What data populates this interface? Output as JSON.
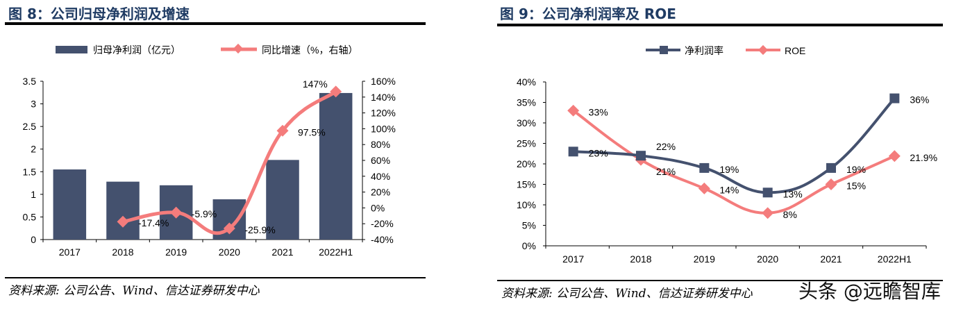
{
  "left": {
    "title": "图 8：公司归母净利润及增速",
    "source": "资料来源: 公司公告、Wind、信达证券研发中心"
  },
  "right": {
    "title": "图 9：公司净利润率及 ROE",
    "source": "资料来源: 公司公告、Wind、信达证券研发中心"
  },
  "watermark": "头条 @远瞻智库",
  "chart_data": [
    {
      "type": "bar+line",
      "categories": [
        "2017",
        "2018",
        "2019",
        "2020",
        "2021",
        "2022H1"
      ],
      "series": [
        {
          "name": "归母净利润（亿元）",
          "type": "bar",
          "axis": "left",
          "color": "#44516e",
          "values": [
            1.55,
            1.28,
            1.2,
            0.89,
            1.76,
            3.24
          ]
        },
        {
          "name": "同比增速（%，右轴）",
          "type": "line",
          "axis": "right",
          "color": "#f47c7c",
          "values": [
            null,
            -17.4,
            -5.9,
            -25.9,
            97.5,
            147
          ],
          "labels": [
            "",
            "-17.4%",
            "-5.9%",
            "-25.9%",
            "97.5%",
            "147%"
          ]
        }
      ],
      "left_axis": {
        "range": [
          0,
          3.5
        ],
        "ticks": [
          "0",
          "0.5",
          "1",
          "1.5",
          "2",
          "2.5",
          "3",
          "3.5"
        ]
      },
      "right_axis": {
        "range": [
          -40,
          160
        ],
        "ticks": [
          "-40%",
          "-20%",
          "0%",
          "20%",
          "40%",
          "60%",
          "80%",
          "100%",
          "120%",
          "140%",
          "160%"
        ]
      },
      "legend": "top",
      "grid": false
    },
    {
      "type": "line",
      "categories": [
        "2017",
        "2018",
        "2019",
        "2020",
        "2021",
        "2022H1"
      ],
      "series": [
        {
          "name": "净利润率",
          "color": "#44516e",
          "marker": "square",
          "values": [
            23,
            22,
            19,
            13,
            19,
            36
          ],
          "labels": [
            "23%",
            "22%",
            "19%",
            "13%",
            "19%",
            "36%"
          ]
        },
        {
          "name": "ROE",
          "color": "#f47c7c",
          "marker": "diamond",
          "values": [
            33,
            21,
            14,
            8,
            15,
            21.9
          ],
          "labels": [
            "33%",
            "21%",
            "14%",
            "8%",
            "15%",
            "21.9%"
          ]
        }
      ],
      "y_axis": {
        "range": [
          0,
          40
        ],
        "ticks": [
          "0%",
          "5%",
          "10%",
          "15%",
          "20%",
          "25%",
          "30%",
          "35%",
          "40%"
        ]
      },
      "legend": "top",
      "grid": false
    }
  ]
}
